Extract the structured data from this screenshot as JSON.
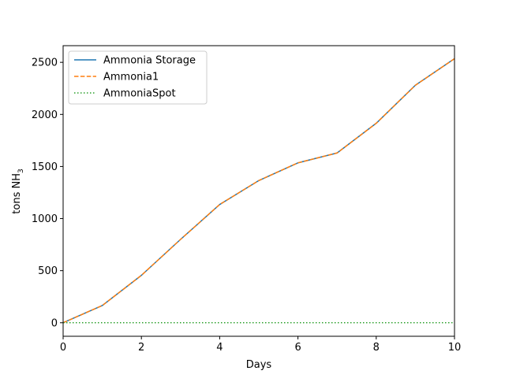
{
  "chart_data": {
    "type": "line",
    "xlabel": "Days",
    "ylabel": "tons NH",
    "ylabel_subscript": "3",
    "xlim": [
      0,
      10
    ],
    "ylim": [
      -130,
      2660
    ],
    "xticks": [
      0,
      2,
      4,
      6,
      8,
      10
    ],
    "yticks": [
      0,
      500,
      1000,
      1500,
      2000,
      2500
    ],
    "grid": false,
    "legend_position": "upper-left",
    "x": [
      0,
      1,
      2,
      3,
      4,
      5,
      6,
      7,
      8,
      9,
      10
    ],
    "series": [
      {
        "name": "Ammonia Storage",
        "color": "#1f77b4",
        "style": "solid",
        "values": [
          0,
          165,
          455,
          800,
          1135,
          1365,
          1535,
          1630,
          1915,
          2280,
          2535
        ]
      },
      {
        "name": "Ammonia1",
        "color": "#ff7f0e",
        "style": "dashed",
        "values": [
          0,
          165,
          455,
          800,
          1135,
          1365,
          1535,
          1630,
          1915,
          2280,
          2535
        ]
      },
      {
        "name": "AmmoniaSpot",
        "color": "#2ca02c",
        "style": "dotted",
        "values": [
          0,
          0,
          0,
          0,
          0,
          0,
          0,
          0,
          0,
          0,
          0
        ]
      }
    ]
  }
}
